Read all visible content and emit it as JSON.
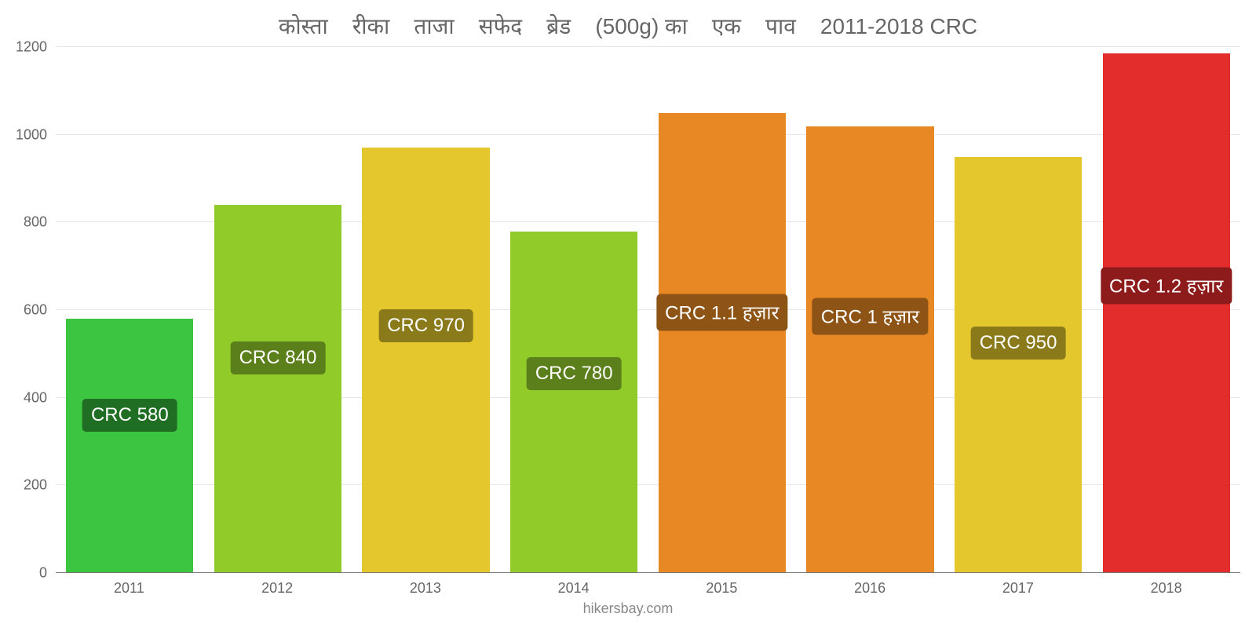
{
  "chart": {
    "type": "bar",
    "title": "कोस्ता    रीका    ताजा    सफेद    ब्रेड    (500g) का    एक    पाव    2011-2018 CRC",
    "title_fontsize": 28,
    "title_color": "#666666",
    "background_color": "#ffffff",
    "grid_color": "#e6e6e6",
    "axis_tick_color": "#666666",
    "axis_fontsize": 18,
    "ylim": [
      0,
      1200
    ],
    "ytick_step": 200,
    "yticks": [
      "0",
      "200",
      "400",
      "600",
      "800",
      "1000",
      "1200"
    ],
    "bar_width_pct": 86,
    "label_fontsize": 24,
    "label_bg": "rgba(72,95,23,0.92)",
    "label_color": "#ffffff",
    "attribution": "hikersbay.com",
    "attribution_fontsize": 18,
    "attribution_color": "#888888",
    "categories": [
      "2011",
      "2012",
      "2013",
      "2014",
      "2015",
      "2016",
      "2017",
      "2018"
    ],
    "values": [
      580,
      840,
      970,
      780,
      1050,
      1020,
      950,
      1185
    ],
    "value_labels": [
      "CRC 580",
      "CRC 840",
      "CRC 970",
      "CRC 780",
      "CRC 1.1 हज़ार",
      "CRC 1 हज़ार",
      "CRC 950",
      "CRC 1.2 हज़ार"
    ],
    "label_y_values": [
      360,
      490,
      565,
      455,
      595,
      585,
      525,
      655
    ],
    "bar_colors": [
      "#3bc541",
      "#91cb29",
      "#e3c72c",
      "#91cb29",
      "#e78824",
      "#e78824",
      "#e3c72c",
      "#e32c2c"
    ],
    "label_bg_colors": [
      "#1f6e23",
      "#5b7f1a",
      "#8a7a1a",
      "#5b7f1a",
      "#8e5416",
      "#8e5416",
      "#8a7a1a",
      "#8e1b1b"
    ]
  }
}
